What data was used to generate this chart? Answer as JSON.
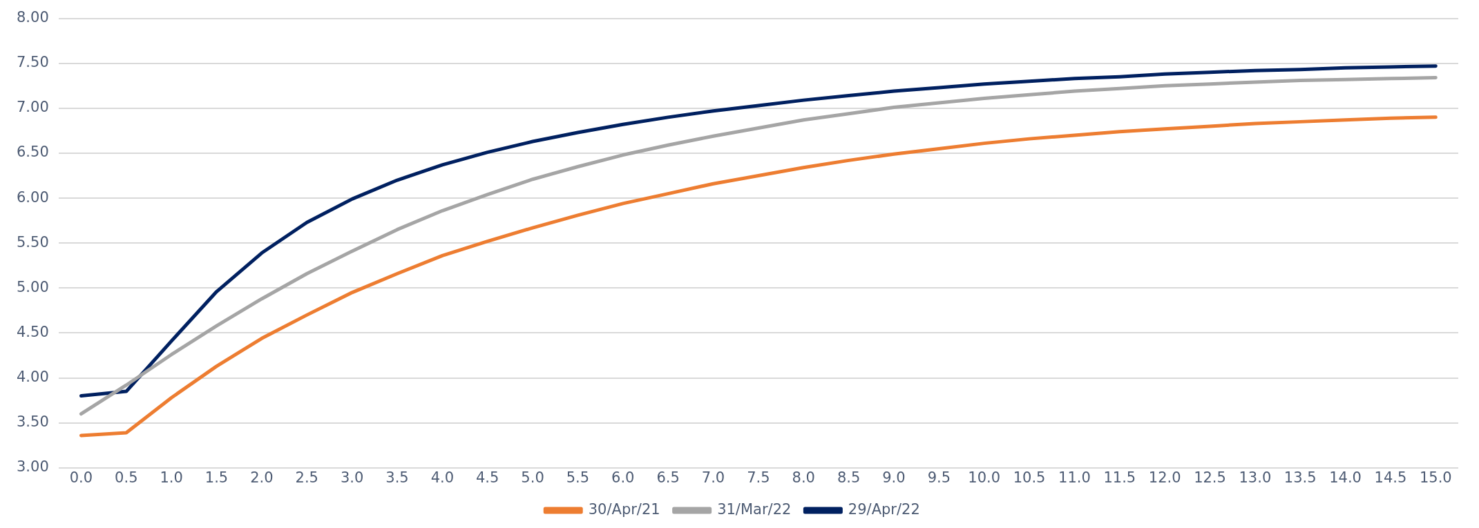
{
  "chart_data": {
    "type": "line",
    "categories": [
      "0.0",
      "0.5",
      "1.0",
      "1.5",
      "2.0",
      "2.5",
      "3.0",
      "3.5",
      "4.0",
      "4.5",
      "5.0",
      "5.5",
      "6.0",
      "6.5",
      "7.0",
      "7.5",
      "8.0",
      "8.5",
      "9.0",
      "9.5",
      "10.0",
      "10.5",
      "11.0",
      "11.5",
      "12.0",
      "12.5",
      "13.0",
      "13.5",
      "14.0",
      "14.5",
      "15.0"
    ],
    "series": [
      {
        "name": "30/Apr/21",
        "color": "#ed7d31",
        "values": [
          3.36,
          3.39,
          3.78,
          4.13,
          4.44,
          4.7,
          4.95,
          5.16,
          5.36,
          5.52,
          5.67,
          5.81,
          5.94,
          6.05,
          6.16,
          6.25,
          6.34,
          6.42,
          6.49,
          6.55,
          6.61,
          6.66,
          6.7,
          6.74,
          6.77,
          6.8,
          6.83,
          6.85,
          6.87,
          6.89,
          6.9
        ]
      },
      {
        "name": "31/Mar/22",
        "color": "#a5a5a5",
        "values": [
          3.6,
          3.92,
          4.26,
          4.58,
          4.88,
          5.16,
          5.41,
          5.65,
          5.86,
          6.04,
          6.21,
          6.35,
          6.48,
          6.59,
          6.69,
          6.78,
          6.87,
          6.94,
          7.01,
          7.06,
          7.11,
          7.15,
          7.19,
          7.22,
          7.25,
          7.27,
          7.29,
          7.31,
          7.32,
          7.33,
          7.34
        ]
      },
      {
        "name": "29/Apr/22",
        "color": "#002060",
        "values": [
          3.8,
          3.85,
          4.41,
          4.96,
          5.39,
          5.73,
          5.99,
          6.2,
          6.37,
          6.51,
          6.63,
          6.73,
          6.82,
          6.9,
          6.97,
          7.03,
          7.09,
          7.14,
          7.19,
          7.23,
          7.27,
          7.3,
          7.33,
          7.35,
          7.38,
          7.4,
          7.42,
          7.43,
          7.45,
          7.46,
          7.47
        ]
      }
    ],
    "ylim": [
      3.0,
      8.0
    ],
    "yticks": [
      {
        "value": 3,
        "label": "3.00"
      },
      {
        "value": 3.5,
        "label": "3.50"
      },
      {
        "value": 4,
        "label": "4.00"
      },
      {
        "value": 4.5,
        "label": "4.50"
      },
      {
        "value": 5,
        "label": "5.00"
      },
      {
        "value": 5.5,
        "label": "5.50"
      },
      {
        "value": 6,
        "label": "6.00"
      },
      {
        "value": 6.5,
        "label": "6.50"
      },
      {
        "value": 7,
        "label": "7.00"
      },
      {
        "value": 7.5,
        "label": "7.50"
      },
      {
        "value": 8,
        "label": "8.00"
      }
    ],
    "grid": "y",
    "legend": "bottom",
    "marker": "none",
    "line_style": "solid"
  }
}
